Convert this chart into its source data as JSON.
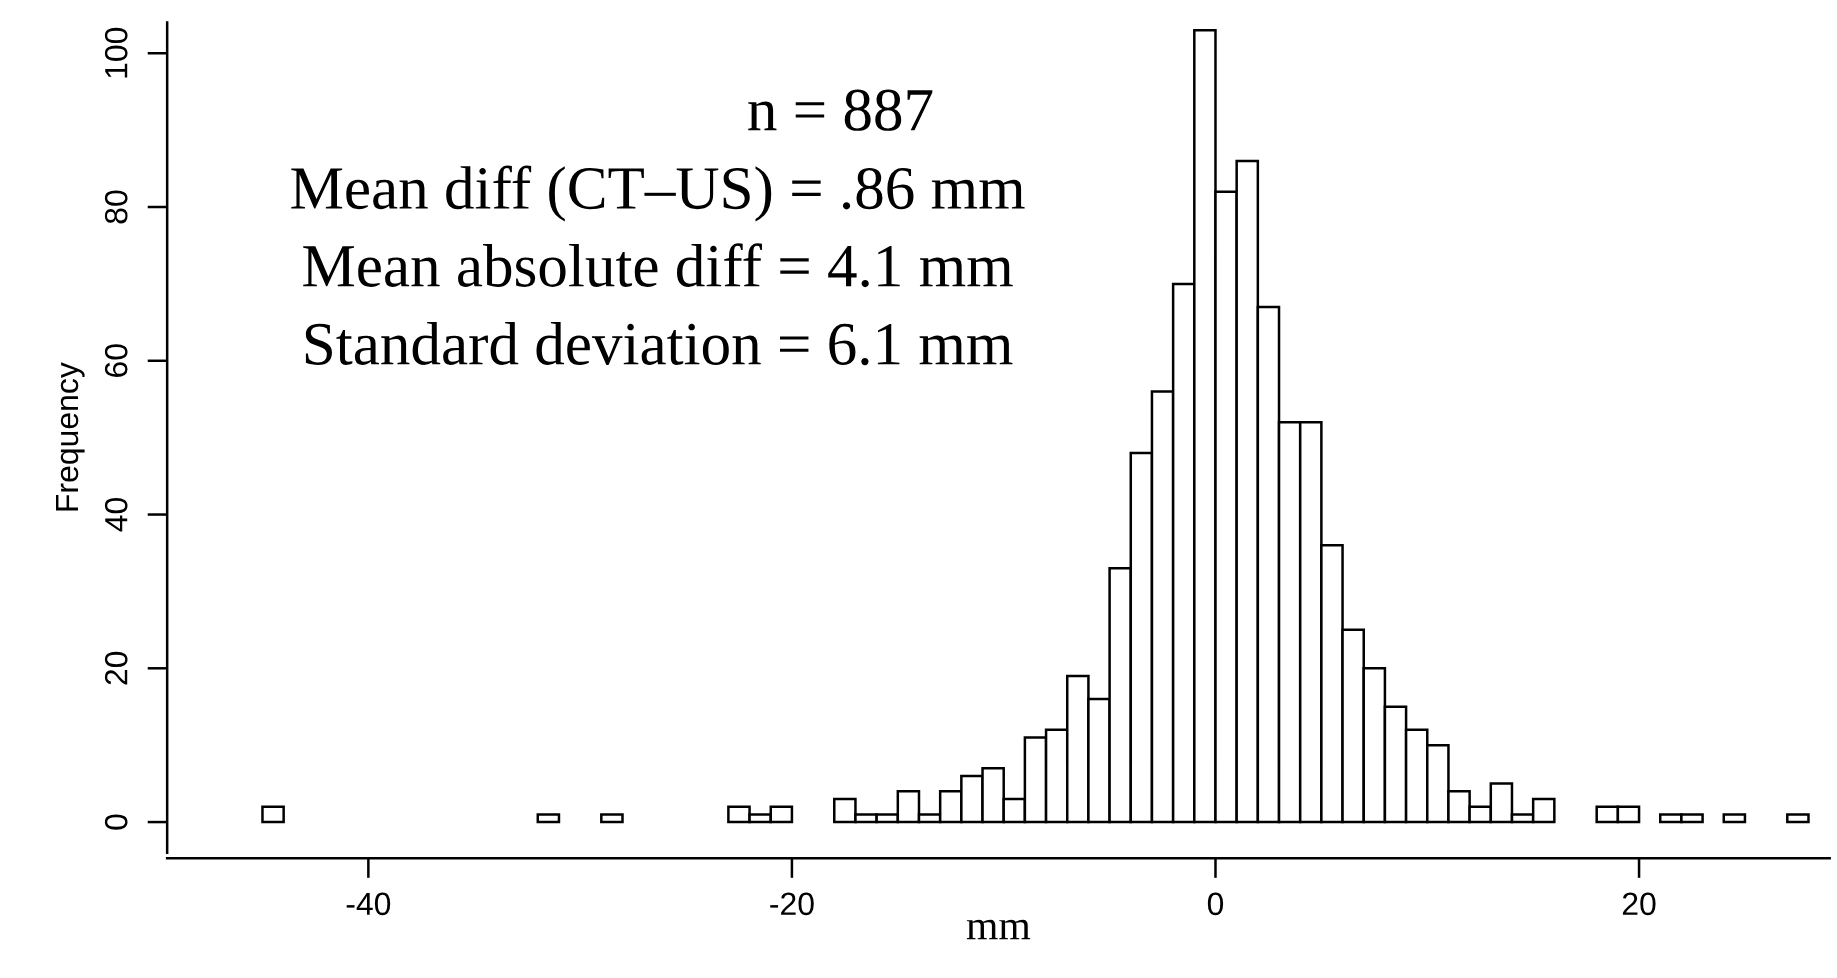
{
  "chart_data": {
    "type": "histogram",
    "bins": [
      -45,
      -44,
      -43,
      -42,
      -41,
      -40,
      -39,
      -38,
      -37,
      -36,
      -35,
      -34,
      -33,
      -32,
      -31,
      -30,
      -29,
      -28,
      -27,
      -26,
      -25,
      -24,
      -23,
      -22,
      -21,
      -20,
      -19,
      -18,
      -17,
      -16,
      -15,
      -14,
      -13,
      -12,
      -11,
      -10,
      -9,
      -8,
      -7,
      -6,
      -5,
      -4,
      -3,
      -2,
      -1,
      0,
      1,
      2,
      3,
      4,
      5,
      6,
      7,
      8,
      9,
      10,
      11,
      12,
      13,
      14,
      15,
      16,
      17,
      18,
      19,
      20,
      21,
      22,
      23,
      24,
      25,
      26,
      27,
      28
    ],
    "values": [
      2,
      0,
      0,
      0,
      0,
      0,
      0,
      0,
      0,
      0,
      0,
      0,
      0,
      1,
      0,
      0,
      1,
      0,
      0,
      0,
      0,
      0,
      2,
      1,
      2,
      0,
      0,
      3,
      1,
      1,
      4,
      1,
      4,
      6,
      7,
      3,
      11,
      12,
      19,
      16,
      33,
      48,
      56,
      70,
      103,
      82,
      86,
      67,
      52,
      52,
      36,
      25,
      20,
      15,
      12,
      10,
      4,
      2,
      5,
      1,
      3,
      0,
      0,
      2,
      2,
      0,
      1,
      1,
      0,
      1,
      0,
      0,
      1
    ],
    "color": "#ffffff",
    "xlabel": "mm",
    "ylabel": "Frequency",
    "xlim": [
      -49.5,
      29
    ],
    "xticks": [
      -40,
      -20,
      0,
      20
    ],
    "ylim": [
      -4,
      104
    ],
    "yticks": [
      0,
      20,
      40,
      60,
      80,
      100
    ],
    "grid": false,
    "annotations": [
      "n = 887",
      "Mean diff (CT–US) = .86 mm",
      "Mean absolute diff = 4.1 mm",
      "Standard deviation = 6.1 mm"
    ]
  }
}
